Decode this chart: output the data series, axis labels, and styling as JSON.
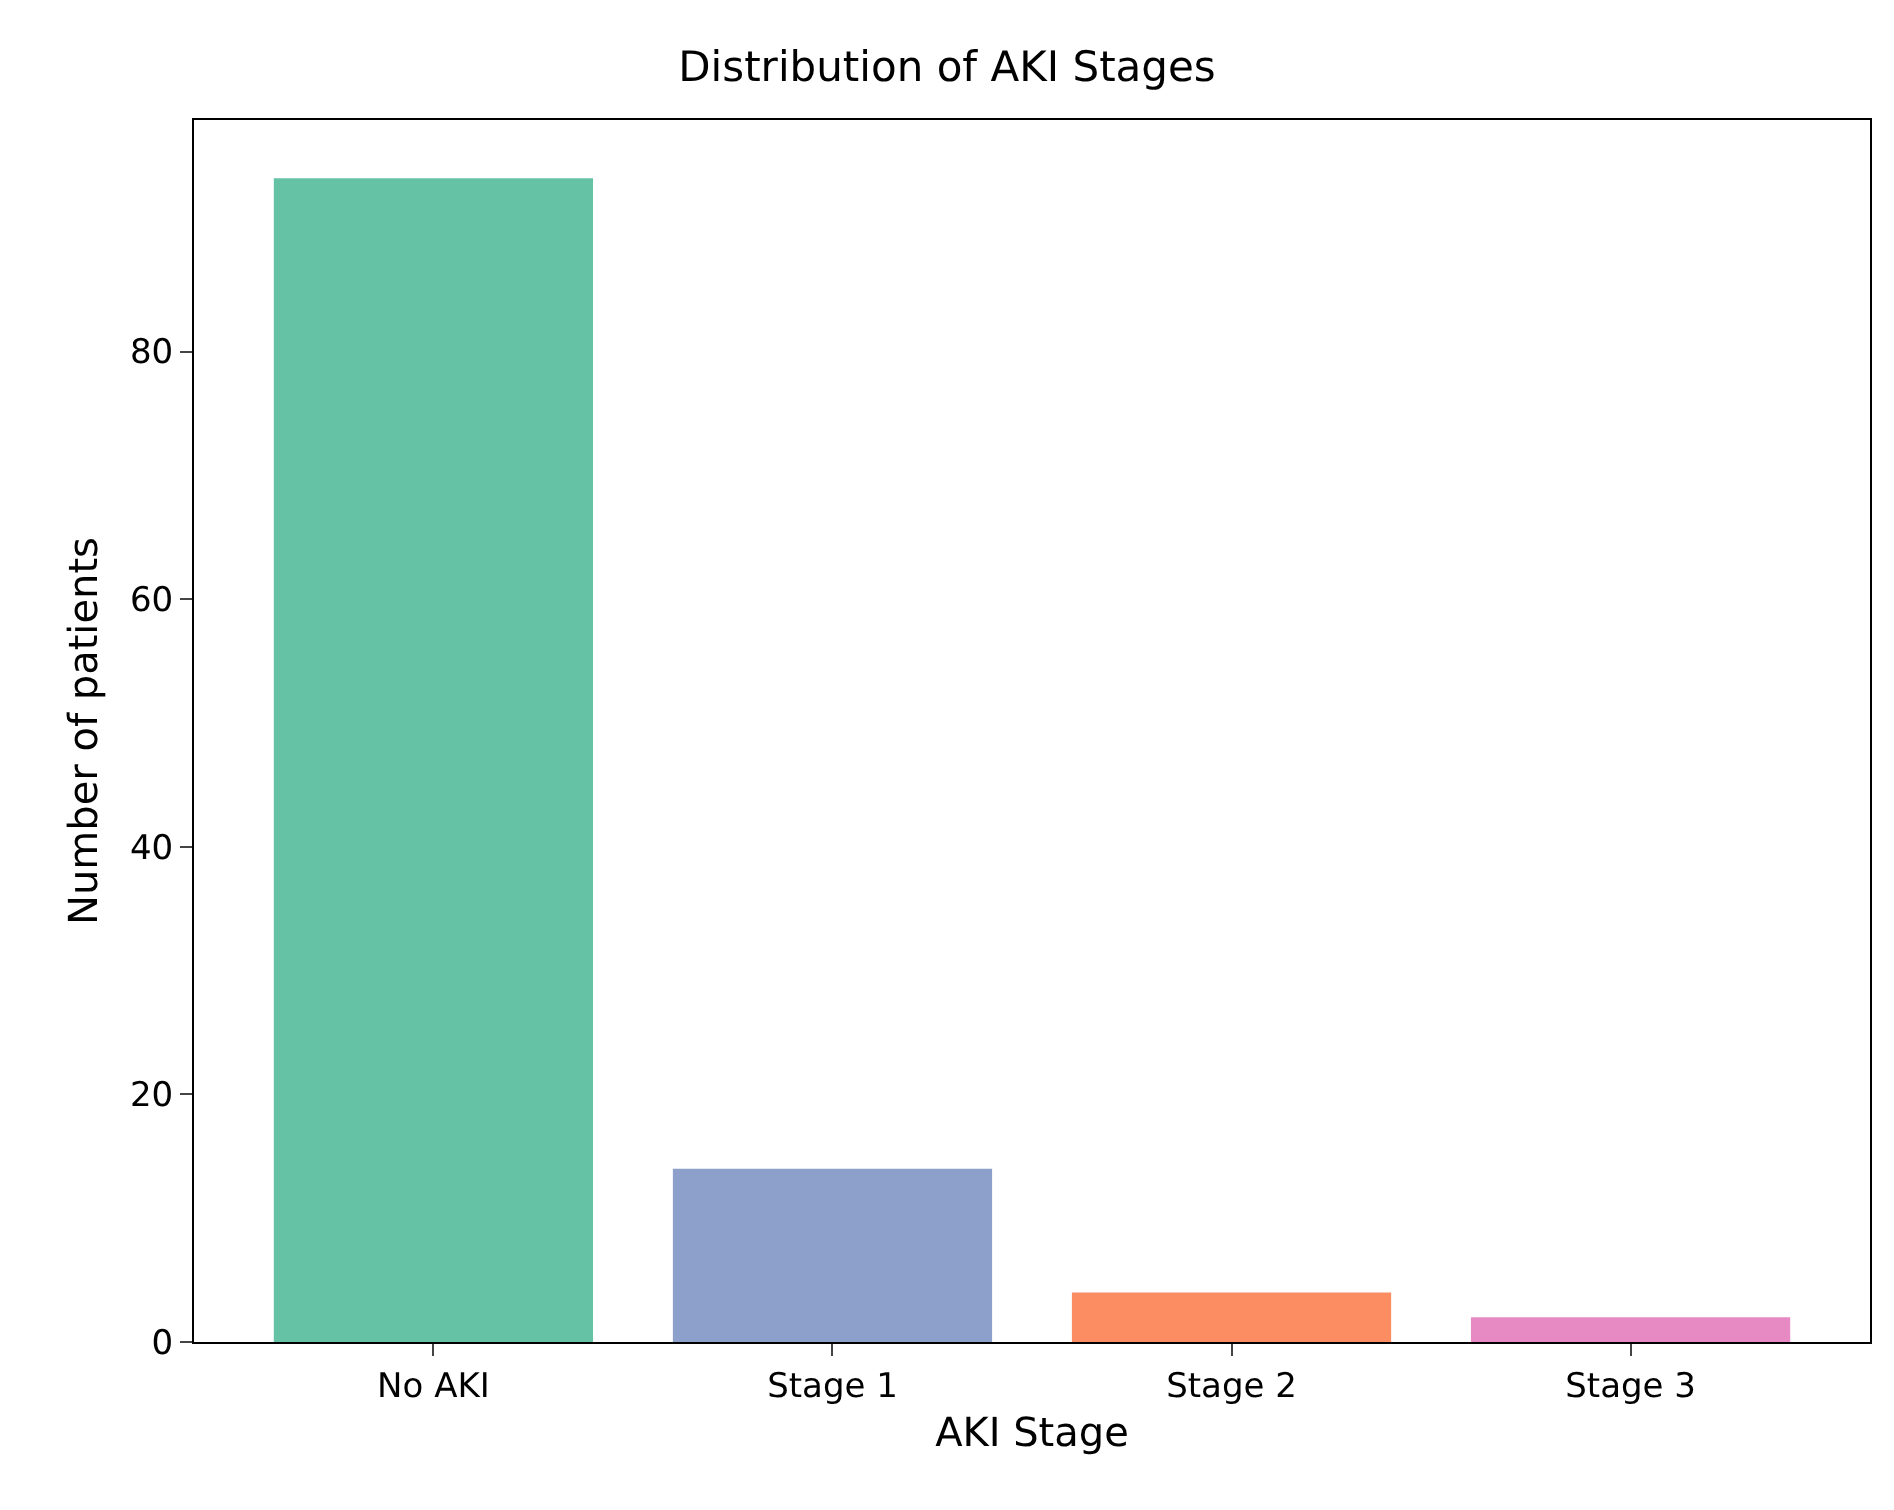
{
  "chart_data": {
    "type": "bar",
    "title": "Distribution of AKI Stages",
    "xlabel": "AKI Stage",
    "ylabel": "Number of patients",
    "categories": [
      "No AKI",
      "Stage 1",
      "Stage 2",
      "Stage 3"
    ],
    "values": [
      94,
      14,
      4,
      2
    ],
    "colors": [
      "#66c2a5",
      "#8da0cb",
      "#fc8d62",
      "#e78ac3"
    ],
    "ylim": [
      0,
      98.7
    ],
    "yticks": [
      0,
      20,
      40,
      60,
      80
    ]
  }
}
